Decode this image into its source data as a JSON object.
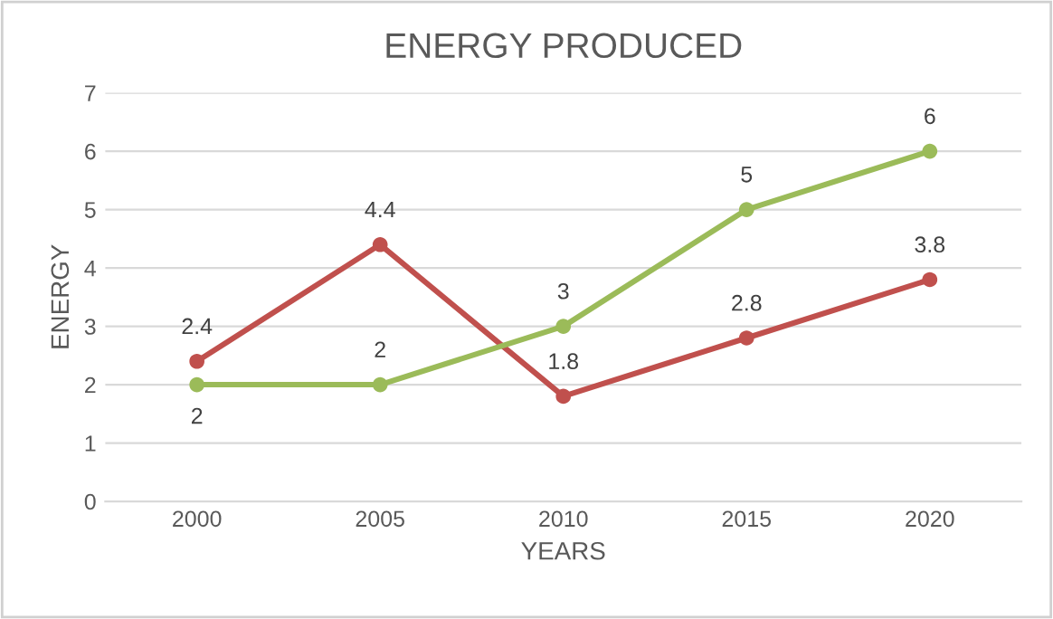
{
  "chart_data": {
    "type": "line",
    "title": "ENERGY PRODUCED",
    "xlabel": "YEARS",
    "ylabel": "ENERGY",
    "categories": [
      "2000",
      "2005",
      "2010",
      "2015",
      "2020"
    ],
    "series": [
      {
        "color": "#c0504d",
        "values": [
          2.4,
          4.4,
          1.8,
          2.8,
          3.8
        ]
      },
      {
        "color": "#9bbb59",
        "values": [
          2,
          2,
          3,
          5,
          6
        ]
      }
    ],
    "ylim": [
      0,
      7
    ],
    "yticks": [
      0,
      1,
      2,
      3,
      4,
      5,
      6,
      7
    ],
    "grid": "y",
    "marker": "circle",
    "line_style": "solid",
    "data_labels": true
  }
}
